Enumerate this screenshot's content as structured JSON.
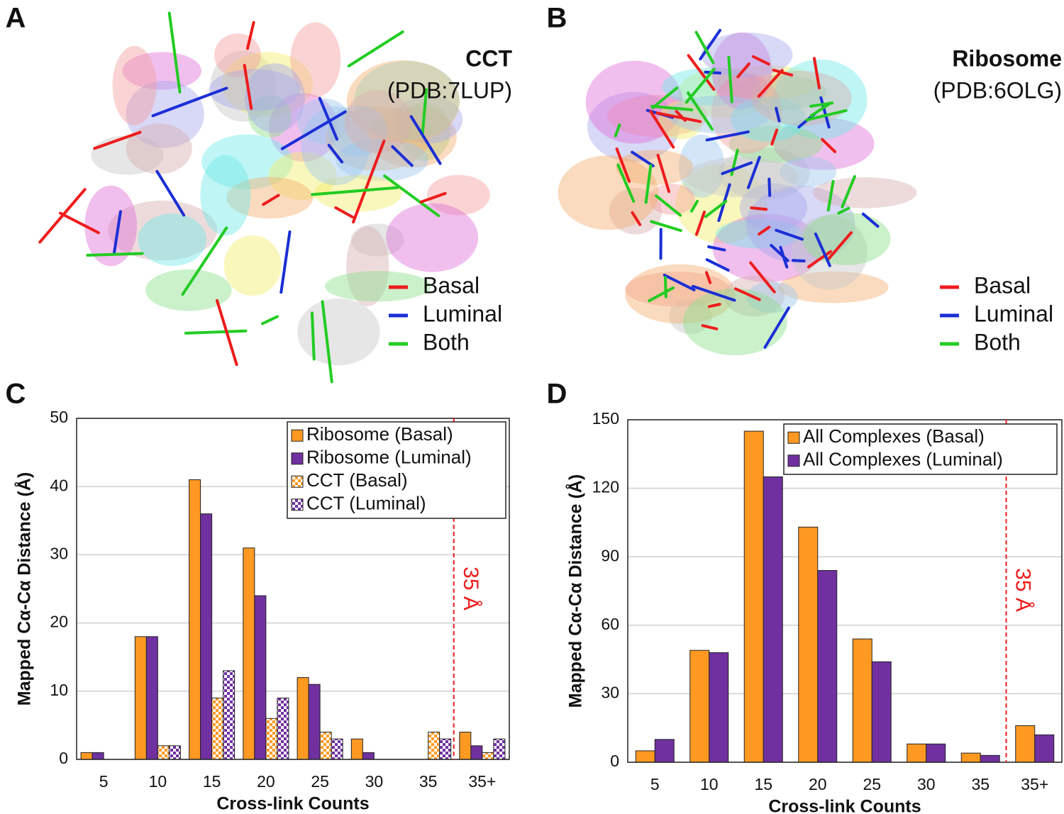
{
  "panel_labels": [
    "A",
    "B",
    "C",
    "D"
  ],
  "structures": [
    {
      "title": "CCT",
      "subtitle": "(PDB:7LUP)",
      "legend": [
        {
          "name": "Basal",
          "color": "#ee1c1c"
        },
        {
          "name": "Luminal",
          "color": "#1a2fd6"
        },
        {
          "name": "Both",
          "color": "#22cc22"
        }
      ]
    },
    {
      "title": "Ribosome",
      "subtitle": "(PDB:6OLG)",
      "legend": [
        {
          "name": "Basal",
          "color": "#ee1c1c"
        },
        {
          "name": "Luminal",
          "color": "#1a2fd6"
        },
        {
          "name": "Both",
          "color": "#22cc22"
        }
      ]
    }
  ],
  "chart_data": [
    {
      "type": "bar",
      "x_label": "Cross-link Counts",
      "y_label": "Mapped Cα-Cα Distance (Å)",
      "categories": [
        "5",
        "10",
        "15",
        "20",
        "25",
        "30",
        "35",
        "35+"
      ],
      "series": [
        {
          "name": "Ribosome (Basal)",
          "color": "#ff9922",
          "fill": "solid",
          "values": [
            1,
            18,
            41,
            31,
            12,
            3,
            0,
            4
          ]
        },
        {
          "name": "Ribosome (Luminal)",
          "color": "#7030a0",
          "fill": "solid",
          "values": [
            1,
            18,
            36,
            24,
            11,
            1,
            0,
            2
          ]
        },
        {
          "name": "CCT (Basal)",
          "color": "#ff9922",
          "fill": "checker",
          "values": [
            0,
            2,
            9,
            6,
            4,
            0,
            4,
            1
          ]
        },
        {
          "name": "CCT (Luminal)",
          "color": "#7030a0",
          "fill": "checker",
          "values": [
            0,
            2,
            13,
            9,
            3,
            0,
            3,
            3
          ]
        }
      ],
      "ylim": [
        0,
        50
      ],
      "yticks": [
        0,
        10,
        20,
        30,
        40,
        50
      ],
      "grid": true,
      "annotation": "35 Å",
      "annotation_color": "#ee1c1c"
    },
    {
      "type": "bar",
      "x_label": "Cross-link Counts",
      "y_label": "Mapped Cα-Cα Distance (Å)",
      "categories": [
        "5",
        "10",
        "15",
        "20",
        "25",
        "30",
        "35",
        "35+"
      ],
      "series": [
        {
          "name": "All Complexes (Basal)",
          "color": "#ff9922",
          "fill": "solid",
          "values": [
            5,
            49,
            145,
            103,
            54,
            8,
            4,
            16
          ]
        },
        {
          "name": "All Complexes (Luminal)",
          "color": "#7030a0",
          "fill": "solid",
          "values": [
            10,
            48,
            125,
            84,
            44,
            8,
            3,
            12
          ]
        }
      ],
      "ylim": [
        0,
        150
      ],
      "yticks": [
        0,
        30,
        60,
        90,
        120,
        150
      ],
      "grid": true,
      "annotation": "35 Å",
      "annotation_color": "#ee1c1c"
    }
  ]
}
